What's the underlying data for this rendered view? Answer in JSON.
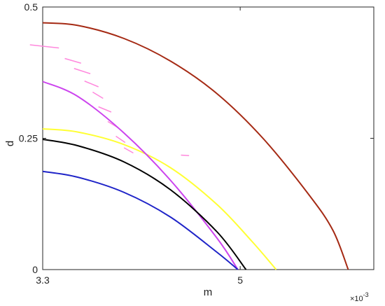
{
  "chart_data": {
    "type": "line",
    "xlabel": "m",
    "ylabel": "d",
    "xlim": [
      0.0033,
      0.00615
    ],
    "ylim": [
      0,
      0.5
    ],
    "x_ticks": [
      {
        "value": 0.0033,
        "label": "3.3"
      },
      {
        "value": 0.005,
        "label": "5"
      }
    ],
    "y_ticks": [
      {
        "value": 0,
        "label": "0"
      },
      {
        "value": 0.25,
        "label": "0.25"
      },
      {
        "value": 0.5,
        "label": "0.5"
      }
    ],
    "x_multiplier": {
      "base": "×10",
      "exponent": "-3"
    },
    "grid": false,
    "legend": "none",
    "series": [
      {
        "color": "#a52a14",
        "x": [
          0.0033,
          0.0036,
          0.004,
          0.0044,
          0.0048,
          0.0052,
          0.0056,
          0.0058,
          0.00593
        ],
        "y": [
          0.47,
          0.465,
          0.44,
          0.397,
          0.335,
          0.249,
          0.14,
          0.074,
          0
        ]
      },
      {
        "color": "#ffff33",
        "x": [
          0.0033,
          0.0036,
          0.004,
          0.0044,
          0.0048,
          0.0051,
          0.00531
        ],
        "y": [
          0.268,
          0.262,
          0.238,
          0.194,
          0.124,
          0.054,
          0
        ]
      },
      {
        "color": "#cc44ee",
        "x": [
          0.0033,
          0.0036,
          0.004,
          0.0044,
          0.0048,
          0.00498
        ],
        "y": [
          0.358,
          0.33,
          0.26,
          0.17,
          0.06,
          0
        ]
      },
      {
        "color": "#000000",
        "x": [
          0.0033,
          0.0036,
          0.004,
          0.0044,
          0.0048,
          0.00505
        ],
        "y": [
          0.248,
          0.236,
          0.205,
          0.152,
          0.072,
          0
        ]
      },
      {
        "color": "#1f24c8",
        "x": [
          0.0033,
          0.0036,
          0.004,
          0.0044,
          0.0048,
          0.00498
        ],
        "y": [
          0.187,
          0.176,
          0.147,
          0.1,
          0.033,
          0
        ]
      }
    ],
    "artifact_strokes": [
      {
        "color": "#ff88dd",
        "x": [
          0.00319,
          0.00344
        ],
        "y": [
          0.428,
          0.422
        ]
      },
      {
        "color": "#ff88dd",
        "x": [
          0.00349,
          0.00363
        ],
        "y": [
          0.402,
          0.393
        ]
      },
      {
        "color": "#ff88dd",
        "x": [
          0.00357,
          0.00371
        ],
        "y": [
          0.383,
          0.373
        ]
      },
      {
        "color": "#ff88dd",
        "x": [
          0.00366,
          0.00378
        ],
        "y": [
          0.359,
          0.348
        ]
      },
      {
        "color": "#ff88dd",
        "x": [
          0.00373,
          0.00382
        ],
        "y": [
          0.338,
          0.326
        ]
      },
      {
        "color": "#ff88dd",
        "x": [
          0.00378,
          0.00389
        ],
        "y": [
          0.31,
          0.3
        ]
      },
      {
        "color": "#ff88dd",
        "x": [
          0.00386,
          0.00395
        ],
        "y": [
          0.282,
          0.27
        ]
      },
      {
        "color": "#ff88dd",
        "x": [
          0.00393,
          0.00401
        ],
        "y": [
          0.254,
          0.242
        ]
      },
      {
        "color": "#ff88dd",
        "x": [
          0.004,
          0.00408
        ],
        "y": [
          0.232,
          0.222
        ]
      },
      {
        "color": "#ff88dd",
        "x": [
          0.00449,
          0.00456
        ],
        "y": [
          0.218,
          0.217
        ]
      }
    ]
  }
}
